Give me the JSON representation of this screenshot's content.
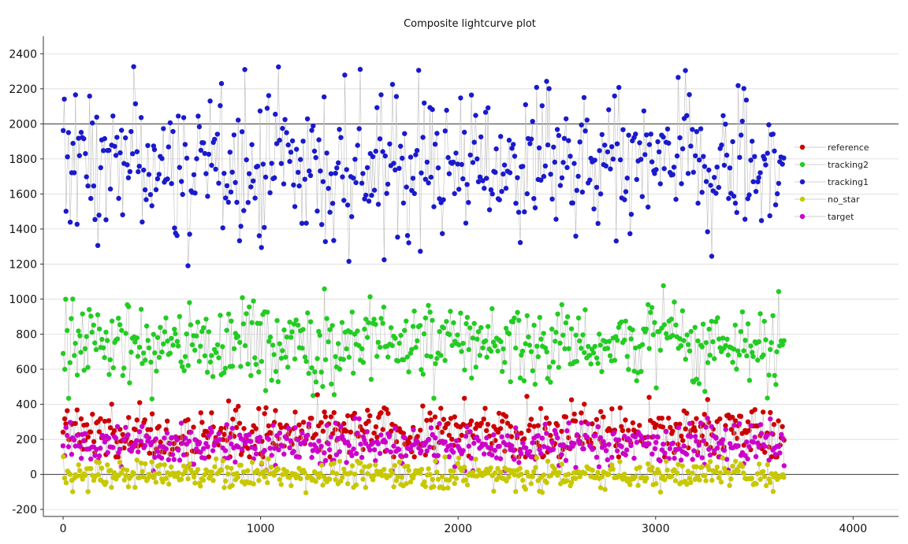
{
  "chart_data": {
    "type": "scatter",
    "title": "Composite lightcurve plot",
    "xlabel": "",
    "ylabel": "",
    "xlim": [
      -100,
      4230
    ],
    "ylim": [
      -240,
      2500
    ],
    "xticks": [
      0,
      1000,
      2000,
      3000,
      4000
    ],
    "yticks": [
      -200,
      0,
      200,
      400,
      600,
      800,
      1000,
      1200,
      1400,
      1600,
      1800,
      2000,
      2200,
      2400
    ],
    "grid": "horizontal",
    "reference_lines": [
      0,
      2000
    ],
    "legend_position": "right",
    "x_range_of_points": [
      0,
      3650
    ],
    "series": [
      {
        "name": "reference",
        "color": "#cc0000",
        "mean": 240,
        "spread": 70,
        "min": 100,
        "max": 470
      },
      {
        "name": "tracking2",
        "color": "#22cc22",
        "mean": 760,
        "spread": 110,
        "min": 420,
        "max": 1120
      },
      {
        "name": "tracking1",
        "color": "#1a1acc",
        "mean": 1760,
        "spread": 190,
        "min": 1170,
        "max": 2380
      },
      {
        "name": "no_star",
        "color": "#c8c800",
        "mean": 0,
        "spread": 35,
        "min": -120,
        "max": 120
      },
      {
        "name": "target",
        "color": "#cc00cc",
        "mean": 170,
        "spread": 55,
        "min": 20,
        "max": 320
      }
    ]
  },
  "legend": [
    "reference",
    "tracking2",
    "tracking1",
    "no_star",
    "target"
  ]
}
